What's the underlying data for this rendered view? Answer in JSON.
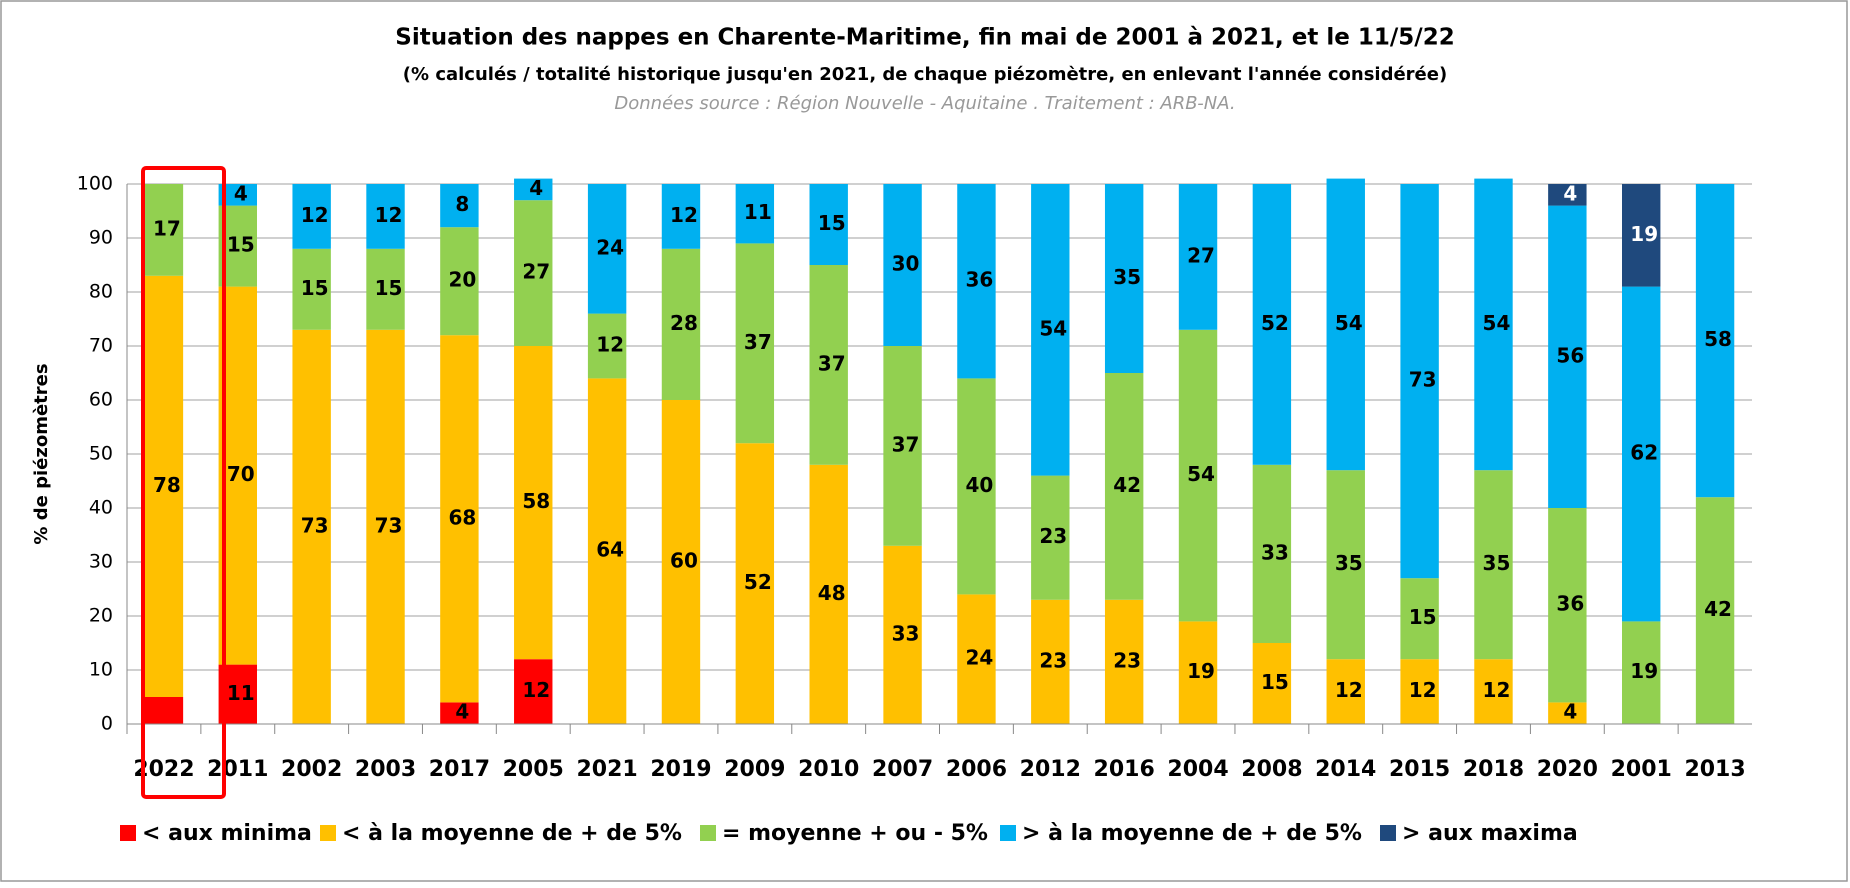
{
  "chart_data": {
    "type": "stacked_bar",
    "title": "Situation des nappes en Charente-Maritime, fin mai de 2001 à 2021, et le 11/5/22",
    "subtitle": "(% calculés / totalité historique jusqu'en 2021, de chaque piézomètre, en enlevant l'année considérée)",
    "source": "Données source : Région Nouvelle - Aquitaine . Traitement : ARB-NA.",
    "y_label": "% de piézomètres",
    "categories": [
      "2022",
      "2011",
      "2002",
      "2003",
      "2017",
      "2005",
      "2021",
      "2019",
      "2009",
      "2010",
      "2007",
      "2006",
      "2012",
      "2016",
      "2004",
      "2008",
      "2014",
      "2015",
      "2018",
      "2020",
      "2001",
      "2013"
    ],
    "series": [
      {
        "name": "< aux minima",
        "color": "#ff0000",
        "label_color": "#000000",
        "values": [
          5,
          11,
          null,
          null,
          4,
          12,
          null,
          null,
          null,
          null,
          null,
          null,
          null,
          null,
          null,
          null,
          null,
          null,
          null,
          null,
          null,
          null
        ],
        "value_labels": [
          null,
          "11",
          null,
          null,
          "4",
          "12",
          null,
          null,
          null,
          null,
          null,
          null,
          null,
          null,
          null,
          null,
          null,
          null,
          null,
          null,
          null,
          null
        ]
      },
      {
        "name": "< à la moyenne de + de 5%",
        "color": "#ffc000",
        "label_color": "#000000",
        "values": [
          78,
          70,
          73,
          73,
          68,
          58,
          64,
          60,
          52,
          48,
          33,
          24,
          23,
          23,
          19,
          15,
          12,
          12,
          12,
          4,
          null,
          null
        ]
      },
      {
        "name": "= moyenne + ou - 5%",
        "color": "#92d050",
        "label_color": "#000000",
        "values": [
          17,
          15,
          15,
          15,
          20,
          27,
          12,
          28,
          37,
          37,
          37,
          40,
          23,
          42,
          54,
          33,
          35,
          15,
          35,
          36,
          19,
          42
        ]
      },
      {
        "name": "> à la moyenne de + de 5%",
        "color": "#00b0f0",
        "label_color": "#000000",
        "values": [
          null,
          4,
          12,
          12,
          8,
          4,
          24,
          12,
          11,
          15,
          30,
          36,
          54,
          35,
          27,
          52,
          54,
          73,
          54,
          56,
          62,
          58
        ]
      },
      {
        "name": "> aux maxima",
        "color": "#1f497d",
        "label_color": "#ffffff",
        "values": [
          null,
          null,
          null,
          null,
          null,
          null,
          null,
          null,
          null,
          null,
          null,
          null,
          null,
          null,
          null,
          null,
          null,
          null,
          null,
          4,
          19,
          null
        ]
      }
    ],
    "ylim": [
      0,
      100
    ],
    "yticks": [
      0,
      10,
      20,
      30,
      40,
      50,
      60,
      70,
      80,
      90,
      100
    ],
    "grid": true
  }
}
